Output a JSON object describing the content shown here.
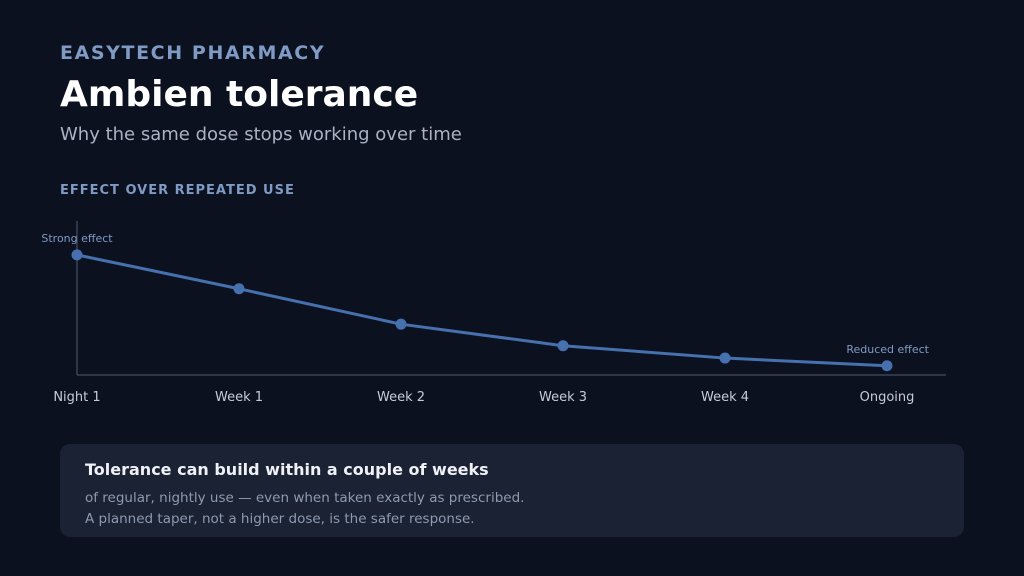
{
  "header": {
    "brand": "EASYTECH PHARMACY",
    "title": "Ambien tolerance",
    "subtitle": "Why the same dose stops working over time"
  },
  "chart_section": {
    "label": "EFFECT OVER REPEATED USE"
  },
  "chart_data": {
    "type": "line",
    "title": "",
    "xlabel": "",
    "ylabel": "",
    "categories": [
      "Night 1",
      "Week 1",
      "Week 2",
      "Week 3",
      "Week 4",
      "Ongoing"
    ],
    "series": [
      {
        "values": [
          100,
          78,
          55,
          41,
          33,
          28
        ]
      }
    ],
    "ylim": [
      22,
      122
    ],
    "grid": false,
    "legend": "none",
    "annotations": [
      {
        "category": "Night 1",
        "text": "Strong effect"
      },
      {
        "category": "Ongoing",
        "text": "Reduced effect"
      }
    ],
    "colors": {
      "line": "#4670ae",
      "axis": "#3a4355",
      "tick_label": "#c5ccd8",
      "annotation": "#7f9ac4"
    }
  },
  "callout": {
    "heading": "Tolerance can build within a couple of weeks",
    "lines": [
      "of regular, nightly use — even when taken exactly as prescribed.",
      "A planned taper, not a higher dose, is the safer response."
    ]
  }
}
